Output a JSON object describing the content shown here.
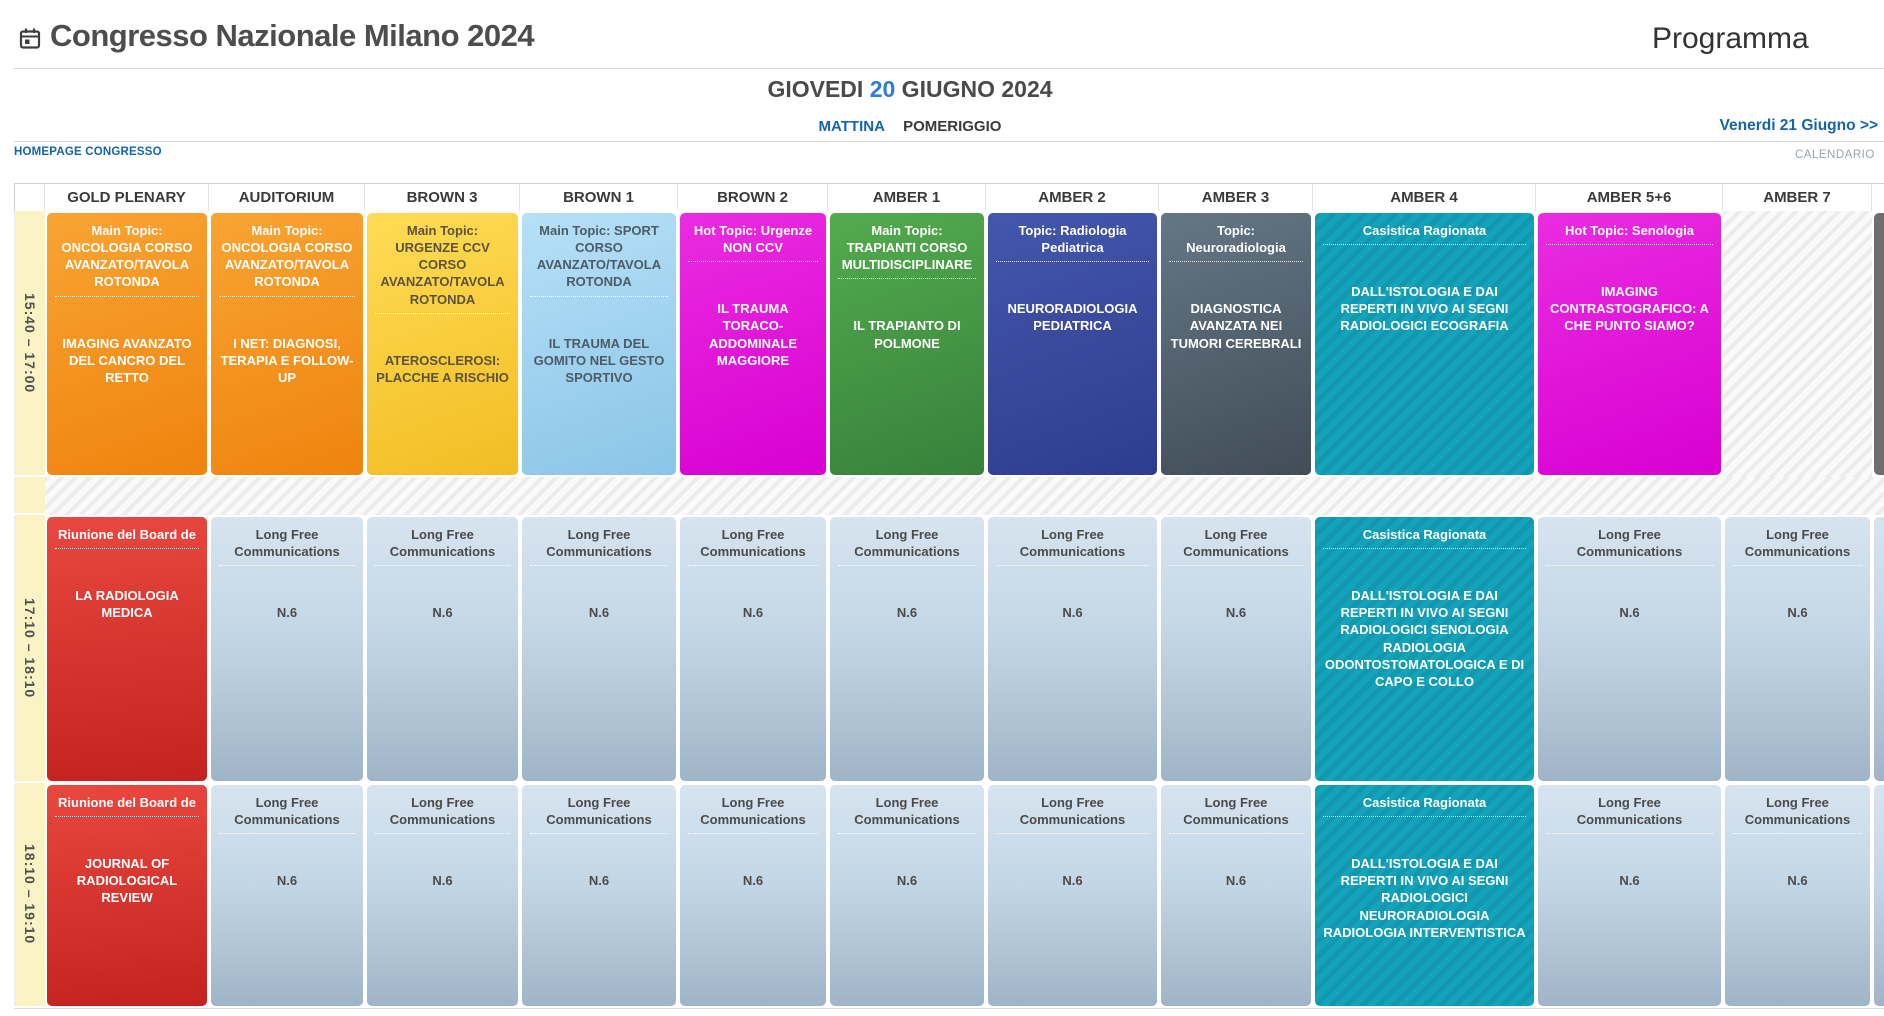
{
  "header": {
    "title": "Congresso Nazionale Milano 2024",
    "page_label": "Programma",
    "date_heading": {
      "day_name": "GIOVEDI ",
      "day_number": "20",
      "month_year": " GIUGNO 2024"
    },
    "tabs": {
      "mattina": "MATTINA",
      "pomeriggio": "POMERIGGIO"
    },
    "next_day_link": "Venerdi 21 Giugno >>",
    "homepage_link": "HOMEPAGE CONGRESSO",
    "calendario_link": "CALENDARIO"
  },
  "colors": {
    "accent_blue": "#1565a8",
    "day_number_blue": "#2d7dd2",
    "orange": "#f7941e",
    "yellow": "#ffd042",
    "light_blue": "#a3d4f0",
    "magenta": "#e20fd8",
    "green": "#4ca546",
    "royal_blue": "#3c4da0",
    "slate": "#5a6b78",
    "teal": "#14a4bc",
    "red": "#dd3832",
    "long_free_blue": "#c6d9e8",
    "time_column_yellow": "#fcf3c5"
  },
  "schedule": {
    "rooms": [
      "GOLD PLENARY",
      "AUDITORIUM",
      "BROWN 3",
      "BROWN 1",
      "BROWN 2",
      "AMBER 1",
      "AMBER 2",
      "AMBER 3",
      "AMBER 4",
      "AMBER 5+6",
      "AMBER 7",
      ""
    ],
    "rows": [
      {
        "time": "15:40 – 17:00",
        "cells": [
          {
            "room": "GOLD PLENARY",
            "style": "orange",
            "topic": "Main Topic: ONCOLOGIA CORSO AVANZATO/TAVOLA ROTONDA",
            "title": "IMAGING AVANZATO DEL CANCRO DEL RETTO"
          },
          {
            "room": "AUDITORIUM",
            "style": "orange",
            "topic": "Main Topic: ONCOLOGIA CORSO AVANZATO/TAVOLA ROTONDA",
            "title": "I NET: DIAGNOSI, TERAPIA E FOLLOW-UP"
          },
          {
            "room": "BROWN 3",
            "style": "yellow",
            "topic": "Main Topic: URGENZE CCV CORSO AVANZATO/TAVOLA ROTONDA",
            "title": "ATEROSCLEROSI: PLACCHE A RISCHIO"
          },
          {
            "room": "BROWN 1",
            "style": "lightblue",
            "topic": "Main Topic: SPORT CORSO AVANZATO/TAVOLA ROTONDA",
            "title": "IL TRAUMA DEL GOMITO NEL GESTO SPORTIVO"
          },
          {
            "room": "BROWN 2",
            "style": "magenta",
            "topic": "Hot Topic: Urgenze NON CCV",
            "title": "IL TRAUMA TORACO-ADDOMINALE MAGGIORE"
          },
          {
            "room": "AMBER 1",
            "style": "green",
            "topic": "Main Topic: TRAPIANTI CORSO MULTIDISCIPLINARE",
            "title": "IL TRAPIANTO DI POLMONE"
          },
          {
            "room": "AMBER 2",
            "style": "royal",
            "topic": "Topic: Radiologia Pediatrica",
            "title": "NEURORADIOLOGIA PEDIATRICA"
          },
          {
            "room": "AMBER 3",
            "style": "slate",
            "topic": "Topic: Neuroradiologia",
            "title": "DIAGNOSTICA AVANZATA NEI TUMORI CEREBRALI"
          },
          {
            "room": "AMBER 4",
            "style": "teal",
            "topic": "Casistica Ragionata",
            "title": "DALL'ISTOLOGIA E DAI REPERTI IN VIVO AI SEGNI RADIOLOGICI ECOGRAFIA"
          },
          {
            "room": "AMBER 5+6",
            "style": "magenta",
            "topic": "Hot Topic: Senologia",
            "title": "IMAGING CONTRASTOGRAFICO: A CHE PUNTO SIAMO?"
          },
          {
            "room": "AMBER 7",
            "style": "empty",
            "topic": "",
            "title": ""
          },
          {
            "room": "",
            "style": "graypartial",
            "topic": "",
            "title": ""
          }
        ]
      },
      {
        "time": "17:10 – 18:10",
        "cells": [
          {
            "room": "GOLD PLENARY",
            "style": "red",
            "topic": "Riunione del Board de",
            "title": "LA RADIOLOGIA MEDICA"
          },
          {
            "room": "AUDITORIUM",
            "style": "longfree",
            "topic": "Long Free Communications",
            "title": "N.6"
          },
          {
            "room": "BROWN 3",
            "style": "longfree",
            "topic": "Long Free Communications",
            "title": "N.6"
          },
          {
            "room": "BROWN 1",
            "style": "longfree",
            "topic": "Long Free Communications",
            "title": "N.6"
          },
          {
            "room": "BROWN 2",
            "style": "longfree",
            "topic": "Long Free Communications",
            "title": "N.6"
          },
          {
            "room": "AMBER 1",
            "style": "longfree",
            "topic": "Long Free Communications",
            "title": "N.6"
          },
          {
            "room": "AMBER 2",
            "style": "longfree",
            "topic": "Long Free Communications",
            "title": "N.6"
          },
          {
            "room": "AMBER 3",
            "style": "longfree",
            "topic": "Long Free Communications",
            "title": "N.6"
          },
          {
            "room": "AMBER 4",
            "style": "teal",
            "topic": "Casistica Ragionata",
            "title": "DALL'ISTOLOGIA E DAI REPERTI IN VIVO AI SEGNI RADIOLOGICI SENOLOGIA RADIOLOGIA ODONTOSTOMATOLOGICA E DI CAPO E COLLO"
          },
          {
            "room": "AMBER 5+6",
            "style": "longfree",
            "topic": "Long Free Communications",
            "title": "N.6"
          },
          {
            "room": "AMBER 7",
            "style": "longfree",
            "topic": "Long Free Communications",
            "title": "N.6"
          },
          {
            "room": "",
            "style": "longfree",
            "topic": "",
            "title": ""
          }
        ]
      },
      {
        "time": "18:10 – 19:10",
        "cells": [
          {
            "room": "GOLD PLENARY",
            "style": "red",
            "topic": "Riunione del Board de",
            "title": "JOURNAL OF RADIOLOGICAL REVIEW"
          },
          {
            "room": "AUDITORIUM",
            "style": "longfree",
            "topic": "Long Free Communications",
            "title": "N.6"
          },
          {
            "room": "BROWN 3",
            "style": "longfree",
            "topic": "Long Free Communications",
            "title": "N.6"
          },
          {
            "room": "BROWN 1",
            "style": "longfree",
            "topic": "Long Free Communications",
            "title": "N.6"
          },
          {
            "room": "BROWN 2",
            "style": "longfree",
            "topic": "Long Free Communications",
            "title": "N.6"
          },
          {
            "room": "AMBER 1",
            "style": "longfree",
            "topic": "Long Free Communications",
            "title": "N.6"
          },
          {
            "room": "AMBER 2",
            "style": "longfree",
            "topic": "Long Free Communications",
            "title": "N.6"
          },
          {
            "room": "AMBER 3",
            "style": "longfree",
            "topic": "Long Free Communications",
            "title": "N.6"
          },
          {
            "room": "AMBER 4",
            "style": "teal",
            "topic": "Casistica Ragionata",
            "title": "DALL'ISTOLOGIA E DAI REPERTI IN VIVO AI SEGNI RADIOLOGICI NEURORADIOLOGIA RADIOLOGIA INTERVENTISTICA"
          },
          {
            "room": "AMBER 5+6",
            "style": "longfree",
            "topic": "Long Free Communications",
            "title": "N.6"
          },
          {
            "room": "AMBER 7",
            "style": "longfree",
            "topic": "Long Free Communications",
            "title": "N.6"
          },
          {
            "room": "",
            "style": "longfree",
            "topic": "",
            "title": ""
          }
        ]
      }
    ]
  }
}
